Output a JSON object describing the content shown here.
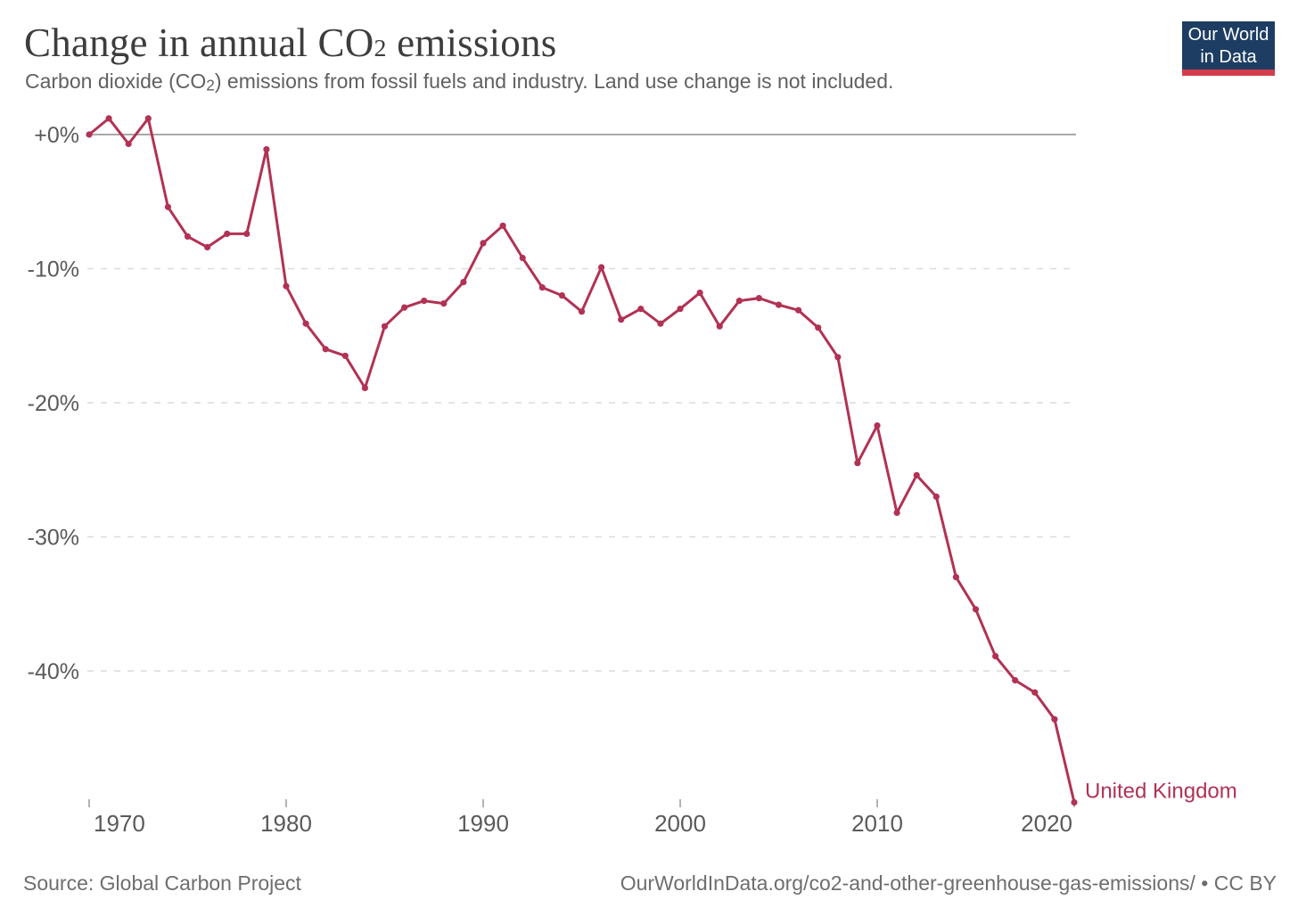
{
  "header": {
    "title_prefix": "Change in annual CO",
    "title_sub": "2",
    "title_suffix": " emissions",
    "subtitle_prefix": "Carbon dioxide (CO",
    "subtitle_sub": "2",
    "subtitle_suffix": ") emissions from fossil fuels and industry. Land use change is not included."
  },
  "logo": {
    "line1": "Our World",
    "line2": "in Data",
    "bg_color": "#1d3d63",
    "bar_color": "#d23c4b"
  },
  "chart_data": {
    "type": "line",
    "title": "Change in annual CO₂ emissions",
    "subtitle": "Carbon dioxide (CO₂) emissions from fossil fuels and industry. Land use change is not included.",
    "unit": "%",
    "x": [
      1970,
      1971,
      1972,
      1973,
      1974,
      1975,
      1976,
      1977,
      1978,
      1979,
      1980,
      1981,
      1982,
      1983,
      1984,
      1985,
      1986,
      1987,
      1988,
      1989,
      1990,
      1991,
      1992,
      1993,
      1994,
      1995,
      1996,
      1997,
      1998,
      1999,
      2000,
      2001,
      2002,
      2003,
      2004,
      2005,
      2006,
      2007,
      2008,
      2009,
      2010,
      2011,
      2012,
      2013,
      2014,
      2015,
      2016,
      2017,
      2018,
      2019,
      2020
    ],
    "series": [
      {
        "name": "United Kingdom",
        "color": "#b13254",
        "values": [
          0,
          1.2,
          -0.7,
          1.2,
          -5.4,
          -7.6,
          -8.4,
          -7.4,
          -7.4,
          -1.1,
          -11.3,
          -14.1,
          -16.0,
          -16.5,
          -18.9,
          -14.3,
          -12.9,
          -12.4,
          -12.6,
          -11.0,
          -8.1,
          -6.8,
          -9.2,
          -11.4,
          -12.0,
          -13.2,
          -9.9,
          -13.8,
          -13.0,
          -14.1,
          -13.0,
          -11.8,
          -14.3,
          -12.4,
          -12.2,
          -12.7,
          -13.1,
          -14.4,
          -16.6,
          -24.5,
          -21.7,
          -28.2,
          -25.4,
          -27.0,
          -33.0,
          -35.4,
          -38.9,
          -40.7,
          -41.6,
          -43.6,
          -49.8
        ]
      }
    ],
    "x_ticks": [
      1970,
      1980,
      1990,
      2000,
      2010,
      2020
    ],
    "y_ticks": [
      {
        "label": "+0%",
        "value": 0
      },
      {
        "label": "-10%",
        "value": -10
      },
      {
        "label": "-20%",
        "value": -20
      },
      {
        "label": "-30%",
        "value": -30
      },
      {
        "label": "-40%",
        "value": -40
      }
    ],
    "ylim": [
      -51,
      2
    ],
    "grid": "horizontal-dashed",
    "legend": "end-of-line-label",
    "colors": {
      "line": "#b13254",
      "grid": "#dcdcdc",
      "zero_line": "#8c8c8c",
      "axis_text": "#5a5a5a",
      "tick": "#999999"
    }
  },
  "footer": {
    "source": "Source: Global Carbon Project",
    "license": "OurWorldInData.org/co2-and-other-greenhouse-gas-emissions/ • CC BY"
  }
}
